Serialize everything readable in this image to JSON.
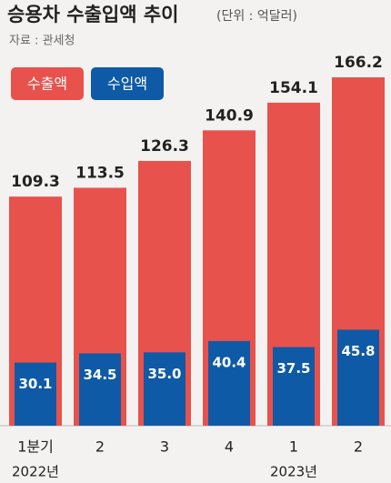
{
  "chart_data": {
    "type": "bar",
    "title": "승용차 수출입액 추이",
    "subtitle": "(단위 : 억달러)",
    "source": "자료 : 관세청",
    "categories": [
      "1분기",
      "2",
      "3",
      "4",
      "1",
      "2"
    ],
    "x_groups": [
      {
        "name": "2022년",
        "count": 4
      },
      {
        "name": "2023년",
        "count": 2
      }
    ],
    "series": [
      {
        "name": "수출액",
        "color": "#e8524c",
        "values": [
          109.3,
          113.5,
          126.3,
          140.9,
          154.1,
          166.2
        ]
      },
      {
        "name": "수입액",
        "color": "#0f5aa6",
        "values": [
          30.1,
          34.5,
          35,
          40.4,
          37.5,
          45.8
        ],
        "value_labels": [
          "30.1",
          "34.5",
          "35.0",
          "40.4",
          "37.5",
          "45.8"
        ]
      }
    ]
  }
}
